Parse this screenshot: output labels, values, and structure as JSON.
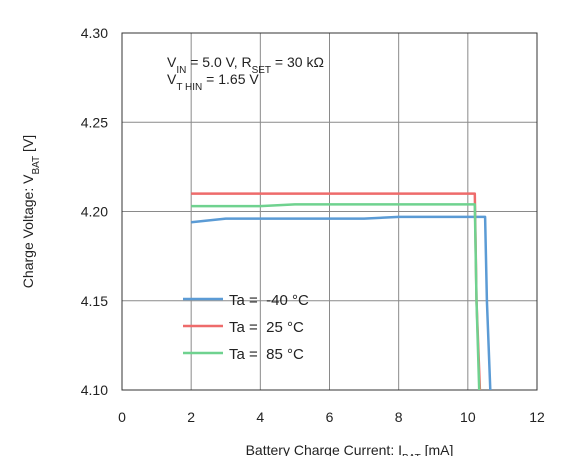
{
  "chart_data": {
    "type": "line",
    "title": "",
    "xlabel": {
      "main": "Battery Charge Current: I",
      "sub": "BAT",
      "unit": " [mA]"
    },
    "ylabel": {
      "main": "Charge Voltage: V",
      "sub": "BAT",
      "unit": " [V]"
    },
    "xlim": [
      0,
      12
    ],
    "ylim": [
      4.1,
      4.3
    ],
    "x_ticks": [
      "0",
      "2",
      "4",
      "6",
      "8",
      "10",
      "12"
    ],
    "y_ticks": [
      "4.10",
      "4.15",
      "4.20",
      "4.25",
      "4.30"
    ],
    "grid": true,
    "legend_position": "bottom-left",
    "annotation": {
      "line1": [
        {
          "text": "V",
          "sub": "IN"
        },
        {
          "text": " = 5.0 V, R",
          "sub": "SET"
        },
        {
          "text": " = 30 kΩ",
          "sub": ""
        }
      ],
      "line2": [
        {
          "text": "V",
          "sub": "T HIN"
        },
        {
          "text": " = 1.65 V",
          "sub": ""
        }
      ]
    },
    "series": [
      {
        "name": "Ta =  -40 °C",
        "color": "#5b9bd5",
        "points": [
          [
            2.0,
            4.194
          ],
          [
            3.0,
            4.196
          ],
          [
            5.0,
            4.196
          ],
          [
            7.0,
            4.196
          ],
          [
            8.0,
            4.197
          ],
          [
            10.0,
            4.197
          ],
          [
            10.5,
            4.197
          ],
          [
            10.55,
            4.15
          ],
          [
            10.65,
            4.1
          ]
        ]
      },
      {
        "name": "Ta =  25 °C",
        "color": "#ee6b6b",
        "points": [
          [
            2.0,
            4.21
          ],
          [
            6.0,
            4.21
          ],
          [
            8.0,
            4.21
          ],
          [
            10.2,
            4.21
          ],
          [
            10.25,
            4.15
          ],
          [
            10.35,
            4.1
          ]
        ]
      },
      {
        "name": "Ta =  85 °C",
        "color": "#6fd28f",
        "points": [
          [
            2.0,
            4.203
          ],
          [
            4.0,
            4.203
          ],
          [
            5.0,
            4.204
          ],
          [
            8.0,
            4.204
          ],
          [
            10.2,
            4.204
          ],
          [
            10.25,
            4.15
          ],
          [
            10.33,
            4.1
          ]
        ]
      }
    ]
  }
}
